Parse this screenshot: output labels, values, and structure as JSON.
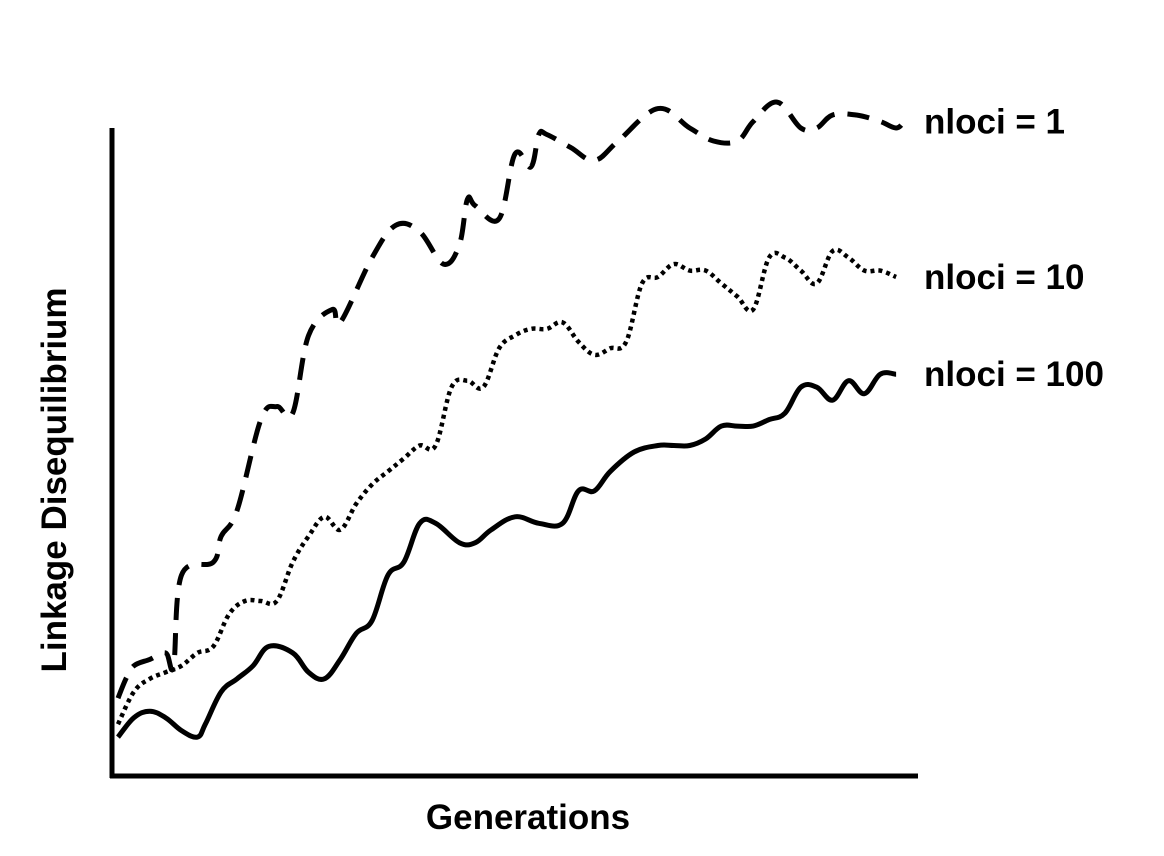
{
  "chart_data": {
    "type": "line",
    "title": "",
    "xlabel": "Generations",
    "ylabel": "Linkage Disequilibrium",
    "xlim": [
      0,
      100
    ],
    "ylim": [
      0,
      100
    ],
    "grid": false,
    "legend": "inline-right",
    "series": [
      {
        "name": "nloci = 1",
        "style": "dashed",
        "color": "#000000",
        "x": [
          0,
          1,
          2,
          4,
          6,
          7,
          8,
          12,
          13,
          15,
          18,
          20,
          22,
          24,
          27,
          28,
          32,
          35,
          38,
          41,
          43,
          44,
          45,
          48,
          50,
          52,
          53,
          54,
          57,
          60,
          63,
          68,
          72,
          75,
          78,
          80,
          83,
          86,
          88,
          90,
          93,
          96,
          98,
          99
        ],
        "y": [
          12,
          15,
          17,
          18,
          19,
          17,
          31,
          33,
          37,
          41,
          55,
          57,
          56,
          68,
          72,
          70,
          80,
          85,
          84,
          79,
          82,
          89,
          88,
          86,
          96,
          94,
          99,
          99,
          97,
          95,
          98,
          103,
          100,
          98,
          98,
          101,
          104,
          100,
          100,
          102,
          102,
          101,
          100,
          101
        ]
      },
      {
        "name": "nloci = 10",
        "style": "dotted",
        "color": "#000000",
        "x": [
          0,
          2,
          4,
          6,
          8,
          10,
          12,
          14,
          16,
          18,
          20,
          22,
          24,
          26,
          28,
          30,
          32,
          34,
          36,
          38,
          40,
          42,
          44,
          46,
          48,
          50,
          52,
          54,
          56,
          58,
          60,
          62,
          64,
          66,
          68,
          70,
          72,
          74,
          76,
          78,
          80,
          82,
          84,
          86,
          88,
          90,
          92,
          94,
          96,
          98
        ],
        "y": [
          8,
          13,
          15,
          16,
          17,
          19,
          20,
          25,
          27,
          27,
          27,
          33,
          37,
          40,
          38,
          42,
          45,
          47,
          49,
          51,
          51,
          60,
          61,
          60,
          66,
          68,
          69,
          69,
          70,
          67,
          65,
          66,
          67,
          76,
          77,
          79,
          78,
          78,
          76,
          74,
          72,
          80,
          80,
          78,
          76,
          81,
          80,
          78,
          78,
          77
        ]
      },
      {
        "name": "nloci = 100",
        "style": "solid",
        "color": "#000000",
        "x": [
          0,
          2,
          4,
          6,
          8,
          10,
          11,
          13,
          15,
          17,
          19,
          22,
          24,
          26,
          28,
          30,
          32,
          34,
          36,
          38,
          40,
          43,
          45,
          47,
          50,
          53,
          56,
          58,
          60,
          62,
          65,
          68,
          70,
          72,
          74,
          76,
          78,
          80,
          82,
          84,
          86,
          88,
          90,
          92,
          94,
          96,
          98
        ],
        "y": [
          6,
          9,
          10,
          9,
          7,
          6,
          8,
          13,
          15,
          17,
          20,
          19,
          16,
          15,
          18,
          22,
          24,
          31,
          33,
          39,
          39,
          36,
          36,
          38,
          40,
          39,
          39,
          44,
          44,
          47,
          50,
          51,
          51,
          51,
          52,
          54,
          54,
          54,
          55,
          56,
          60,
          60,
          58,
          61,
          59,
          62,
          62
        ]
      }
    ]
  }
}
